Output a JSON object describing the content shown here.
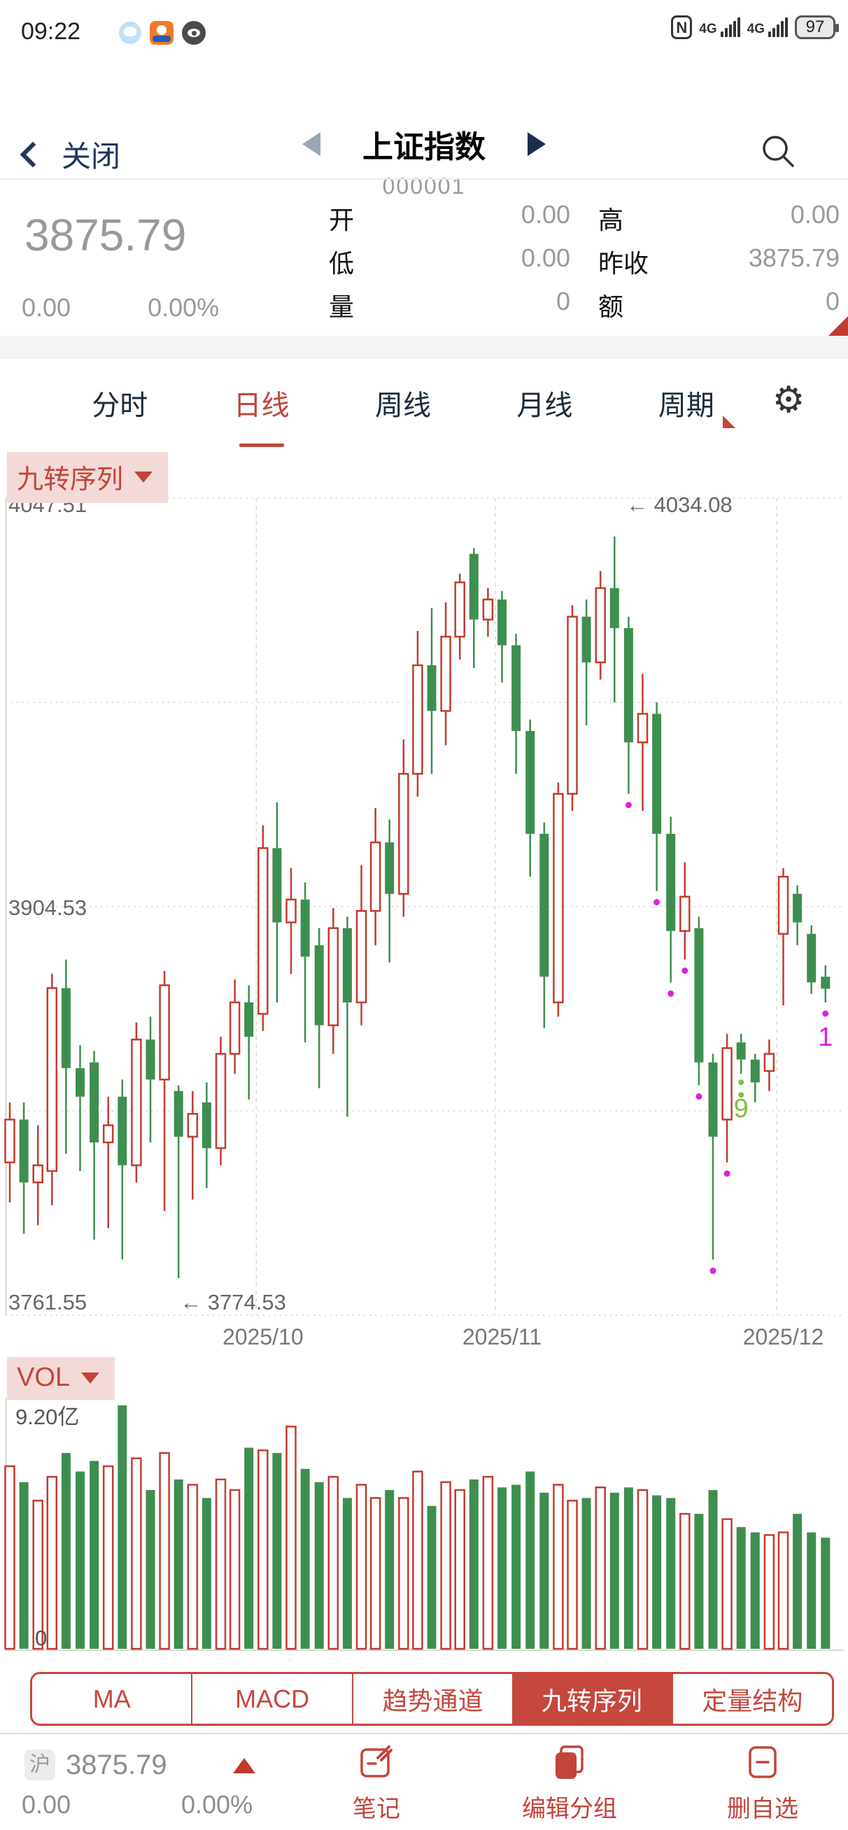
{
  "status_bar": {
    "time": "09:22",
    "battery": "97",
    "network": "4G"
  },
  "header": {
    "back_label": "关闭",
    "title": "上证指数",
    "code": "000001"
  },
  "quote": {
    "price": "3875.79",
    "change": "0.00",
    "change_pct": "0.00%",
    "fields": [
      {
        "label": "开",
        "value": "0.00"
      },
      {
        "label": "高",
        "value": "0.00"
      },
      {
        "label": "低",
        "value": "0.00"
      },
      {
        "label": "昨收",
        "value": "3875.79"
      },
      {
        "label": "量",
        "value": "0"
      },
      {
        "label": "额",
        "value": "0"
      }
    ]
  },
  "period_tabs": {
    "items": [
      "分时",
      "日线",
      "周线",
      "月线",
      "周期"
    ],
    "active": "日线"
  },
  "indicator_badge": {
    "label": "九转序列"
  },
  "vol_badge": {
    "label": "VOL"
  },
  "chart_data": {
    "type": "candlestick+volume",
    "title": "上证指数 日线 九转序列",
    "ylim": [
      3761.55,
      4047.51
    ],
    "y_labels": {
      "top": "4047.51",
      "mid": "3904.53",
      "bottom": "3761.55"
    },
    "annotations": {
      "high": "← 4034.08",
      "low": "← 3774.53"
    },
    "vol_axis": {
      "max_label": "9.20亿",
      "min_label": "0"
    },
    "x_labels": [
      {
        "label": "2025/10",
        "candle": 19
      },
      {
        "label": "2025/11",
        "candle": 36
      },
      {
        "label": "2025/12",
        "candle": 56
      }
    ],
    "candles_format": [
      "open",
      "close",
      "low",
      "high",
      "volume_yi"
    ],
    "candles": [
      [
        3815,
        3830,
        3801,
        3836,
        6.9
      ],
      [
        3830,
        3808,
        3790,
        3836,
        6.3
      ],
      [
        3808,
        3814,
        3793,
        3828,
        5.6
      ],
      [
        3812,
        3876,
        3800,
        3881,
        6.5
      ],
      [
        3876,
        3848,
        3818,
        3886,
        7.4
      ],
      [
        3848,
        3838,
        3812,
        3856,
        6.7
      ],
      [
        3850,
        3822,
        3788,
        3854,
        7.1
      ],
      [
        3822,
        3828,
        3792,
        3838,
        6.9
      ],
      [
        3838,
        3814,
        3781,
        3844,
        9.2
      ],
      [
        3814,
        3858,
        3808,
        3864,
        7.2
      ],
      [
        3858,
        3844,
        3822,
        3866,
        6.0
      ],
      [
        3844,
        3877,
        3798,
        3882,
        7.4
      ],
      [
        3840,
        3824,
        3774.53,
        3842,
        6.4
      ],
      [
        3824,
        3832,
        3802,
        3840,
        6.2
      ],
      [
        3836,
        3820,
        3806,
        3843,
        5.7
      ],
      [
        3820,
        3853,
        3814,
        3859,
        6.4
      ],
      [
        3853,
        3871,
        3846,
        3879,
        6.0
      ],
      [
        3871,
        3859,
        3837,
        3877,
        7.6
      ],
      [
        3867,
        3925,
        3861,
        3933,
        7.5
      ],
      [
        3925,
        3899,
        3871,
        3941,
        7.4
      ],
      [
        3899,
        3907,
        3881,
        3918,
        8.4
      ],
      [
        3907,
        3887,
        3857,
        3913,
        6.8
      ],
      [
        3891,
        3863,
        3841,
        3897,
        6.3
      ],
      [
        3863,
        3897,
        3853,
        3904,
        6.5
      ],
      [
        3897,
        3871,
        3831,
        3901,
        5.7
      ],
      [
        3871,
        3903,
        3863,
        3919,
        6.2
      ],
      [
        3903,
        3927,
        3891,
        3939,
        5.7
      ],
      [
        3927,
        3909,
        3885,
        3935,
        6.0
      ],
      [
        3909,
        3951,
        3901,
        3963,
        5.7
      ],
      [
        3951,
        3989,
        3943,
        4001,
        6.7
      ],
      [
        3989,
        3973,
        3951,
        4009,
        5.4
      ],
      [
        3973,
        3999,
        3961,
        4011,
        6.3
      ],
      [
        3999,
        4018,
        3991,
        4021,
        6.0
      ],
      [
        4028,
        4005,
        3988,
        4030,
        6.4
      ],
      [
        4005,
        4012,
        3999,
        4016,
        6.5
      ],
      [
        4012,
        3996,
        3983,
        4015,
        6.1
      ],
      [
        3996,
        3966,
        3951,
        4000,
        6.2
      ],
      [
        3966,
        3930,
        3915,
        3970,
        6.7
      ],
      [
        3930,
        3880,
        3862,
        3934,
        5.9
      ],
      [
        3871,
        3944,
        3866,
        3948,
        6.2
      ],
      [
        3944,
        4006,
        3938,
        4010,
        5.6
      ],
      [
        4006,
        3990,
        3968,
        4012,
        5.7
      ],
      [
        3990,
        4016,
        3984,
        4022,
        6.1
      ],
      [
        4016,
        4002,
        3976,
        4034.08,
        5.9
      ],
      [
        4002,
        3962,
        3944,
        4006,
        6.1
      ],
      [
        3962,
        3972,
        3938,
        3986,
        6.0
      ],
      [
        3972,
        3930,
        3910,
        3976,
        5.8
      ],
      [
        3930,
        3896,
        3878,
        3936,
        5.7
      ],
      [
        3896,
        3908,
        3886,
        3920,
        5.1
      ],
      [
        3897,
        3850,
        3842,
        3901,
        5.1
      ],
      [
        3850,
        3824,
        3781,
        3853,
        6.0
      ],
      [
        3830,
        3855,
        3815,
        3860,
        4.9
      ],
      [
        3857,
        3851,
        3846,
        3860,
        4.6
      ],
      [
        3851,
        3843,
        3836,
        3853,
        4.4
      ],
      [
        3847,
        3853,
        3840,
        3858,
        4.3
      ],
      [
        3895,
        3915,
        3870,
        3918,
        4.4
      ],
      [
        3909,
        3899,
        3891,
        3912,
        5.1
      ],
      [
        3895,
        3878,
        3874,
        3898,
        4.4
      ],
      [
        3880,
        3875.79,
        3871,
        3884,
        4.2
      ]
    ],
    "markers": {
      "high_arrow_candle": 44,
      "low_arrow_candle": 13,
      "magenta_dots": [
        45,
        47,
        48,
        49,
        50,
        51,
        52,
        59
      ],
      "green_dots": [
        53
      ],
      "seq_labels": [
        {
          "text": "9",
          "color": "green",
          "candle": 53
        },
        {
          "text": "1",
          "color": "magenta",
          "candle": 59
        }
      ]
    },
    "colors": {
      "up": "#c23b2f",
      "down": "#3e8e50",
      "grid": "#cfcfcf",
      "magenta": "#dd22dd",
      "green_dot": "#7ac143",
      "axis_text": "#666"
    }
  },
  "bottom_tabs": {
    "items": [
      "MA",
      "MACD",
      "趋势通道",
      "九转序列",
      "定量结构"
    ],
    "active": "九转序列"
  },
  "bottom_bar": {
    "market": "沪",
    "price": "3875.79",
    "change": "0.00",
    "change_pct": "0.00%",
    "actions": [
      "笔记",
      "编辑分组",
      "删自选"
    ]
  },
  "icons": {
    "gear": "⚙",
    "note": "note-edit-icon",
    "group": "edit-group-icon",
    "remove": "remove-favorite-icon"
  }
}
